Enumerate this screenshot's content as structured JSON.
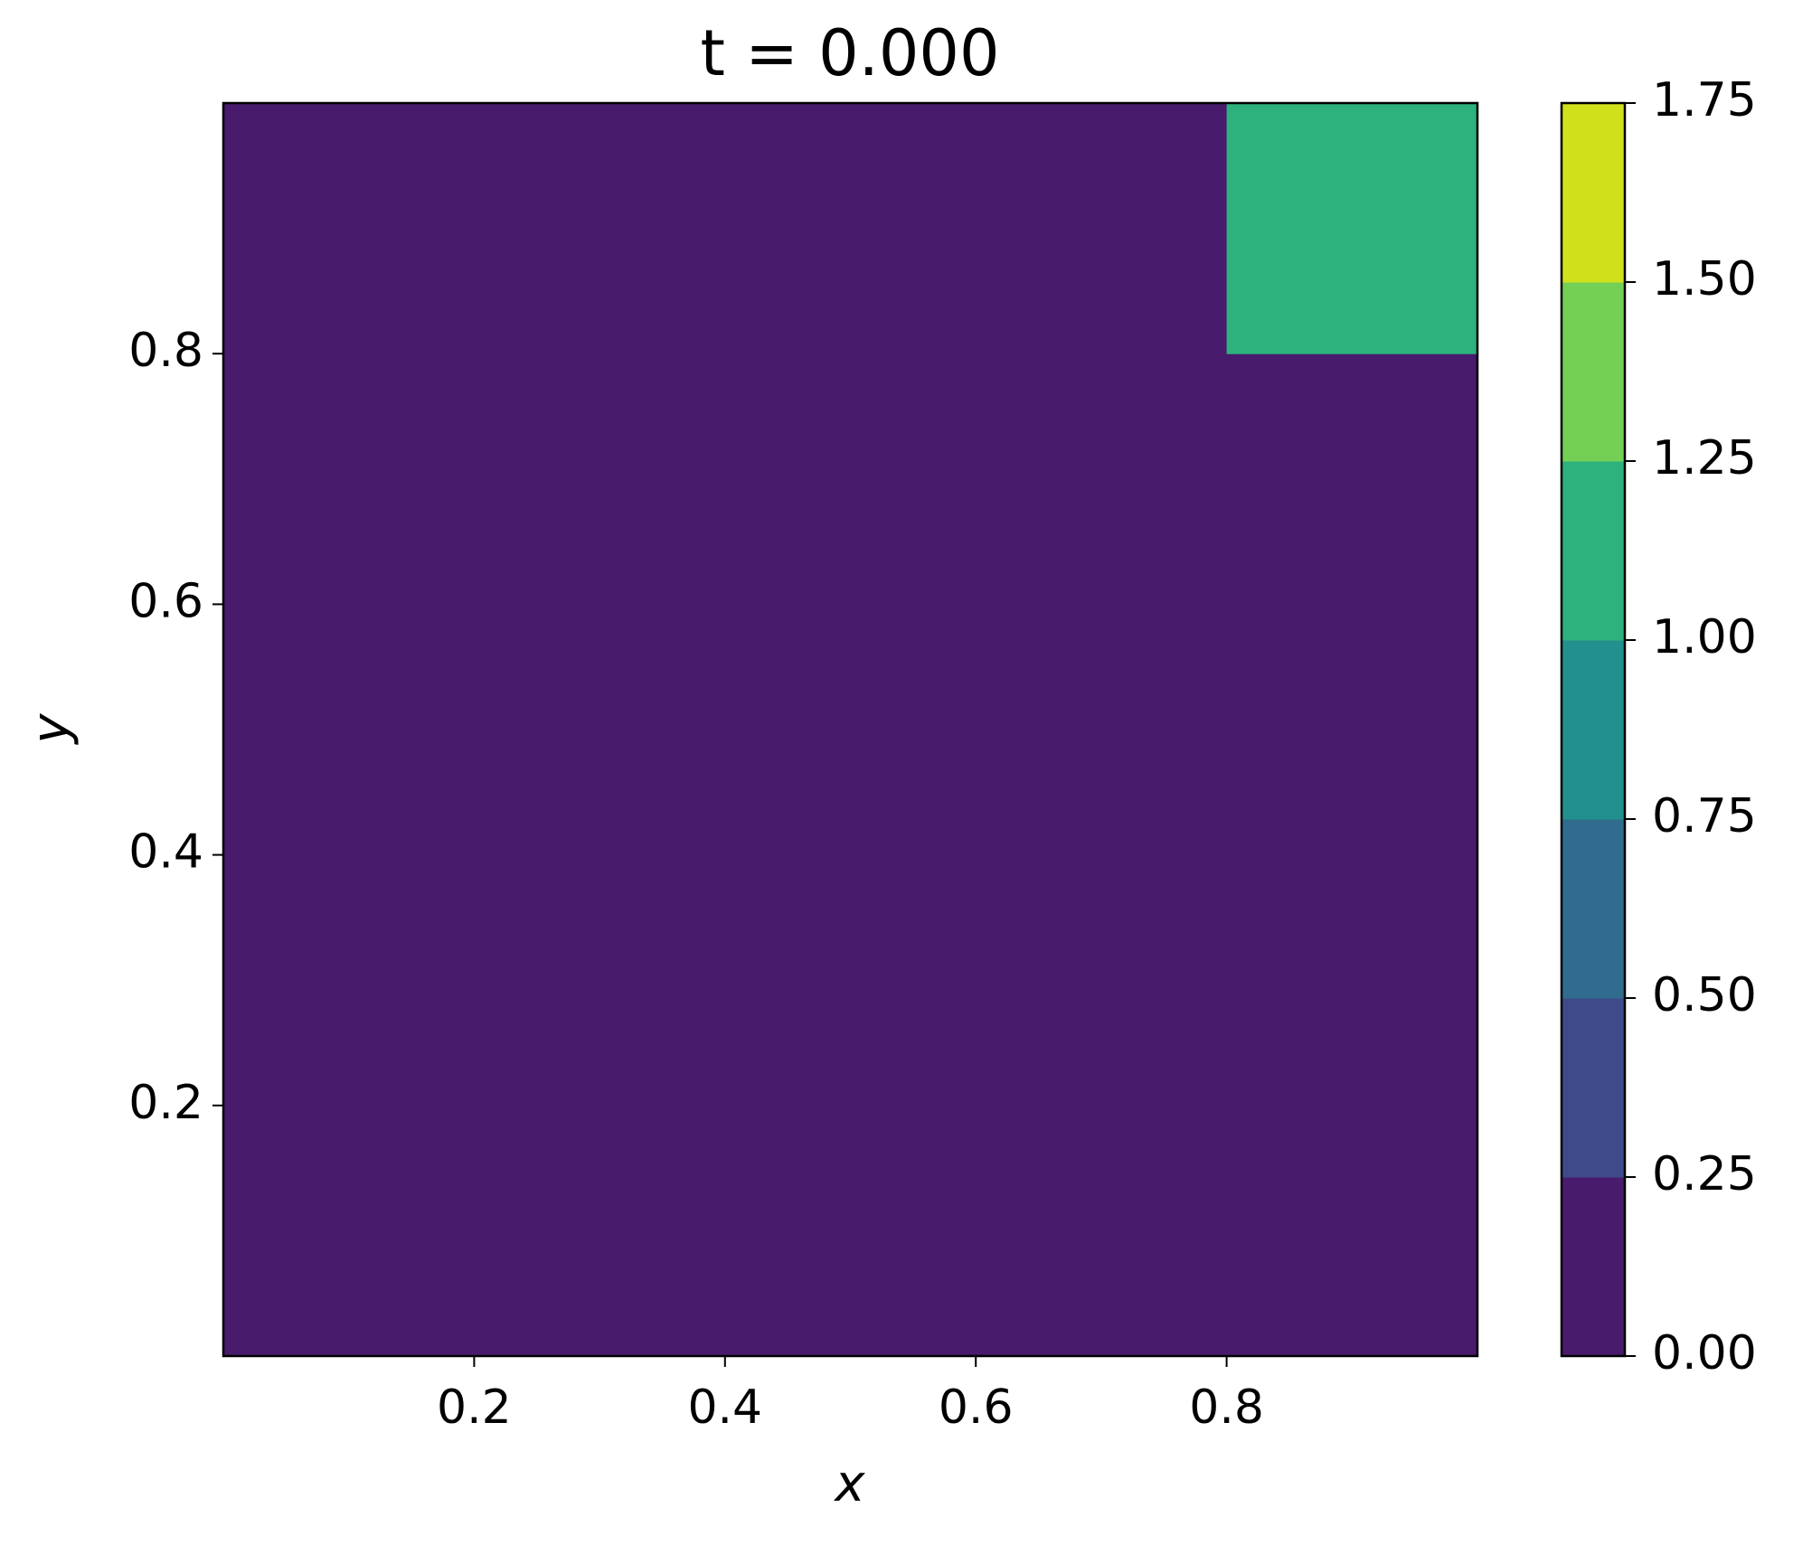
{
  "chart_data": {
    "type": "contourf",
    "title": "t = 0.000",
    "x_label": "x",
    "y_label": "y",
    "x_edges": [
      0,
      0.8,
      1
    ],
    "y_edges": [
      0,
      0.8,
      1
    ],
    "z": [
      [
        0,
        0
      ],
      [
        0,
        1
      ]
    ],
    "xlim": [
      0,
      1
    ],
    "ylim": [
      0,
      1
    ],
    "xticks": [
      0.2,
      0.4,
      0.6,
      0.8
    ],
    "yticks": [
      0.2,
      0.4,
      0.6,
      0.8
    ],
    "colorbar": {
      "ticks": [
        {
          "value": 0,
          "label": "0.00"
        },
        {
          "value": 0.25,
          "label": "0.25"
        },
        {
          "value": 0.5,
          "label": "0.50"
        },
        {
          "value": 0.75,
          "label": "0.75"
        },
        {
          "value": 1,
          "label": "1.00"
        },
        {
          "value": 1.25,
          "label": "1.25"
        },
        {
          "value": 1.5,
          "label": "1.50"
        },
        {
          "value": 1.75,
          "label": "1.75"
        }
      ],
      "colors": [
        "#481b6d",
        "#3f4a8a",
        "#2f6c8e",
        "#22908c",
        "#2db27d",
        "#74d055",
        "#d0e11c"
      ]
    }
  }
}
